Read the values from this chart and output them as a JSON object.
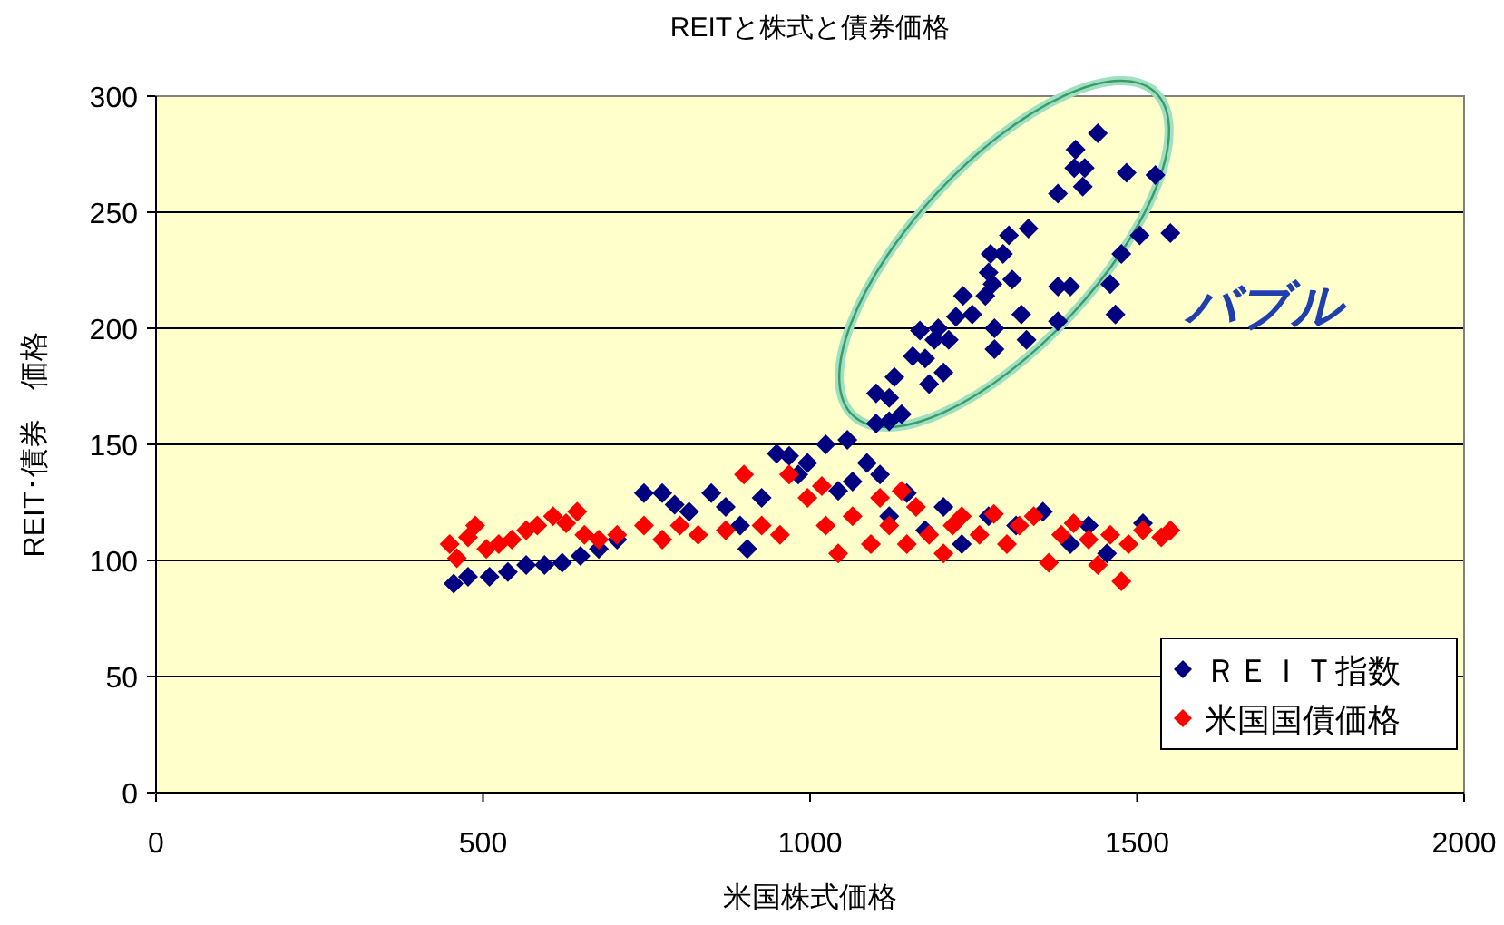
{
  "chart_data": {
    "type": "scatter",
    "title": "REITと株式と債券価格",
    "xlabel": "米国株式価格",
    "ylabel": "REIT･債券　価格",
    "annotations": [
      "バブル"
    ],
    "xlim": [
      0,
      2000
    ],
    "xticks": [
      0,
      500,
      1000,
      1500,
      2000
    ],
    "ylim": [
      0,
      300
    ],
    "yticks": [
      0,
      50,
      100,
      150,
      200,
      250,
      300
    ],
    "grid": "y",
    "legend": "bottom right",
    "marker": "diamond",
    "series": [
      {
        "name": "ＲＥＩＴ指数",
        "color": "#000080",
        "x": [
          455,
          477,
          510,
          538,
          566,
          594,
          621,
          649,
          677,
          705,
          746,
          774,
          793,
          815,
          849,
          871,
          893,
          904,
          926,
          949,
          968,
          982,
          996,
          1024,
          1043,
          1065,
          1087,
          1107,
          1121,
          1148,
          1176,
          1204,
          1232,
          1273,
          1315,
          1356,
          1398,
          1426,
          1454,
          1509,
          1440,
          1406,
          1404,
          1420,
          1417,
          1379,
          1484,
          1528,
          1334,
          1304,
          1295,
          1276,
          1273,
          1279,
          1309,
          1234,
          1268,
          1248,
          1223,
          1323,
          1282,
          1282,
          1331,
          1196,
          1168,
          1212,
          1190,
          1157,
          1176,
          1204,
          1182,
          1129,
          1101,
          1121,
          1140,
          1121,
          1101,
          1379,
          1398,
          1379,
          1459,
          1476,
          1504,
          1551,
          1467,
          1057
        ],
        "values": [
          90,
          93,
          93,
          95,
          98,
          98,
          99,
          102,
          105,
          109,
          129,
          129,
          124,
          121,
          129,
          123,
          115,
          105,
          127,
          146,
          145,
          137,
          142,
          150,
          130,
          134,
          142,
          137,
          119,
          129,
          113,
          123,
          107,
          119,
          115,
          121,
          107,
          115,
          103,
          116,
          284,
          277,
          269,
          269,
          261,
          258,
          267,
          266,
          243,
          240,
          232,
          232,
          224,
          219,
          221,
          214,
          214,
          206,
          205,
          206,
          200,
          191,
          195,
          200,
          199,
          195,
          195,
          188,
          187,
          181,
          176,
          179,
          172,
          170,
          163,
          160,
          159,
          218,
          218,
          203,
          219,
          232,
          240,
          241,
          206,
          152
        ]
      },
      {
        "name": "米国国債価格",
        "color": "#ff0000",
        "x": [
          449,
          460,
          477,
          488,
          505,
          524,
          544,
          566,
          583,
          607,
          627,
          644,
          655,
          677,
          705,
          746,
          774,
          801,
          829,
          871,
          899,
          926,
          954,
          968,
          996,
          1018,
          1024,
          1043,
          1065,
          1093,
          1107,
          1121,
          1140,
          1148,
          1162,
          1182,
          1204,
          1218,
          1232,
          1259,
          1281,
          1301,
          1320,
          1342,
          1365,
          1384,
          1403,
          1426,
          1440,
          1459,
          1476,
          1487,
          1509,
          1537,
          1551
        ],
        "values": [
          107,
          101,
          110,
          115,
          105,
          107,
          109,
          113,
          115,
          119,
          116,
          121,
          111,
          109,
          111,
          115,
          109,
          115,
          111,
          113,
          137,
          115,
          111,
          137,
          127,
          132,
          115,
          103,
          119,
          107,
          127,
          115,
          130,
          107,
          123,
          111,
          103,
          115,
          119,
          111,
          120,
          107,
          115,
          119,
          99,
          111,
          116,
          109,
          98,
          111,
          91,
          107,
          113,
          110,
          113
        ]
      }
    ]
  }
}
